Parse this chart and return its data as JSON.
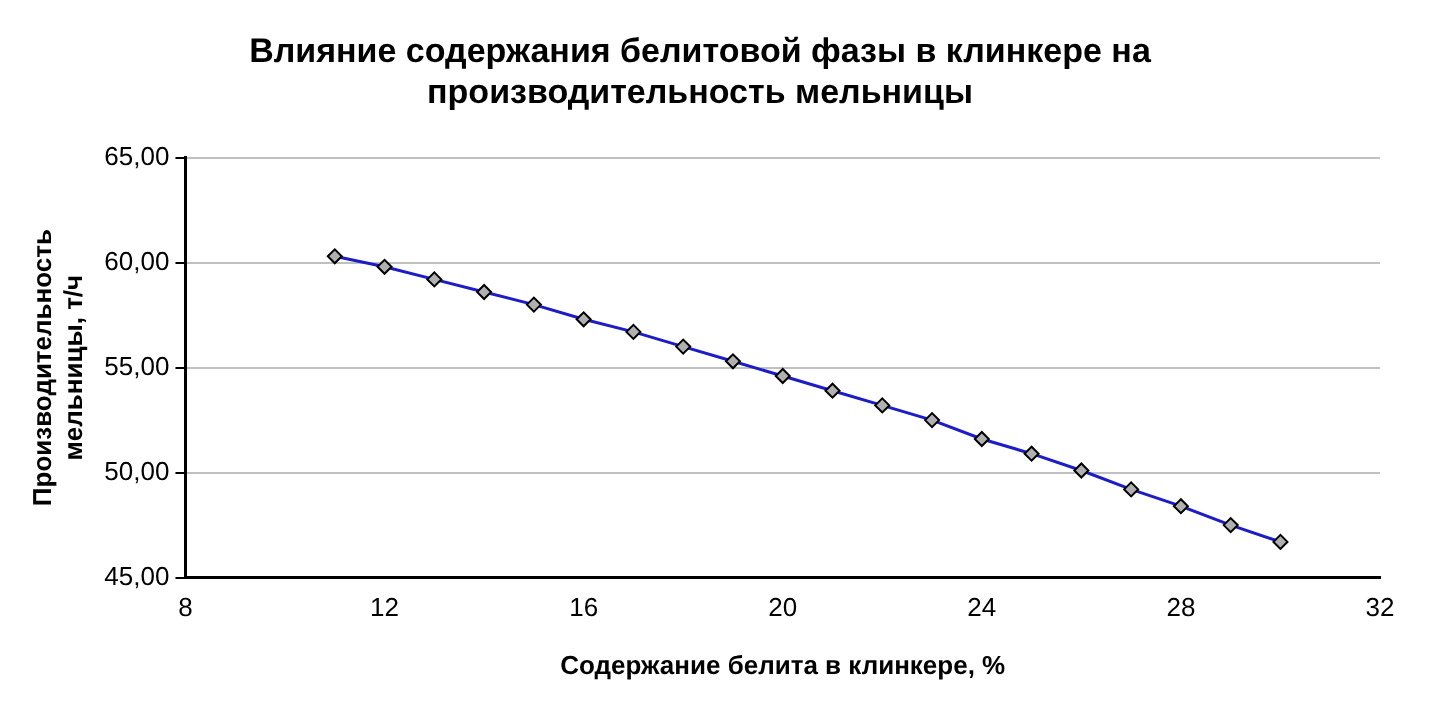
{
  "chart_data": {
    "type": "line",
    "title": "Влияние содержания белитовой фазы в клинкере на производительность мельницы",
    "xlabel": "Содержание белита в клинкере, %",
    "ylabel": "Производительность мельницы, т/ч",
    "x": [
      11,
      12,
      13,
      14,
      15,
      16,
      17,
      18,
      19,
      20,
      21,
      22,
      23,
      24,
      25,
      26,
      27,
      28,
      29,
      30
    ],
    "series": [
      {
        "color": "#1c1cc8",
        "values": [
          60.3,
          59.8,
          59.2,
          58.6,
          58.0,
          57.3,
          56.7,
          56.0,
          55.3,
          54.6,
          53.9,
          53.2,
          52.5,
          51.6,
          50.9,
          50.1,
          49.2,
          48.4,
          47.5,
          46.7
        ]
      }
    ],
    "xlim": [
      8,
      32
    ],
    "xticks": [
      8,
      12,
      16,
      20,
      24,
      28,
      32
    ],
    "ylim": [
      45,
      65
    ],
    "yticks": [
      {
        "value": 45,
        "label": "45,00"
      },
      {
        "value": 50,
        "label": "50,00"
      },
      {
        "value": 55,
        "label": "55,00"
      },
      {
        "value": 60,
        "label": "60,00"
      },
      {
        "value": 65,
        "label": "65,00"
      }
    ],
    "grid": "y",
    "legend": false,
    "marker": "diamond",
    "line_style": "solid"
  }
}
